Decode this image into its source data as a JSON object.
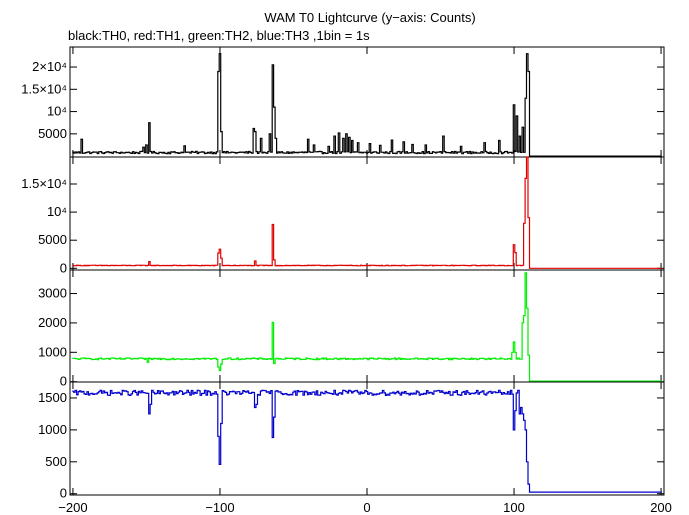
{
  "chart_data": {
    "type": "line",
    "title": "WAM T0 Lightcurve (y−axis: Counts)",
    "subtitle": "black:TH0, red:TH1, green:TH2, blue:TH3 ,1bin = 1s",
    "xlim": [
      -202,
      202
    ],
    "x_ticks": [
      -200,
      -100,
      0,
      100,
      200
    ],
    "x_tick_labels": [
      "−200",
      "−100",
      "0",
      "100",
      "200"
    ],
    "grid": false,
    "panels": [
      {
        "name": "TH0",
        "color": "#000000",
        "ylim": [
          -200,
          24500
        ],
        "y_ticks": [
          5000,
          10000,
          15000,
          20000
        ],
        "y_tick_labels": [
          "5000",
          "10⁴",
          "1.5×10⁴",
          "2×10⁴"
        ],
        "baseline": 800,
        "noise": 250,
        "tail_level": 0,
        "features": [
          {
            "x": -194,
            "y": 3800,
            "w": 1
          },
          {
            "x": -150,
            "y": 2500,
            "w": 1
          },
          {
            "x": -152,
            "y": 2000,
            "w": 1
          },
          {
            "x": -148,
            "y": 7500,
            "w": 1
          },
          {
            "x": -124,
            "y": 2300,
            "w": 1
          },
          {
            "x": -101,
            "y": 19000,
            "w": 1
          },
          {
            "x": -100,
            "y": 23000,
            "w": 1
          },
          {
            "x": -99,
            "y": 5500,
            "w": 1
          },
          {
            "x": -77,
            "y": 6200,
            "w": 1
          },
          {
            "x": -76,
            "y": 5500,
            "w": 1
          },
          {
            "x": -72,
            "y": 4000,
            "w": 1
          },
          {
            "x": -66,
            "y": 5000,
            "w": 1
          },
          {
            "x": -64,
            "y": 20500,
            "w": 1
          },
          {
            "x": -63,
            "y": 11000,
            "w": 1
          },
          {
            "x": -62,
            "y": 4000,
            "w": 1
          },
          {
            "x": -40,
            "y": 3800,
            "w": 1
          },
          {
            "x": -36,
            "y": 2500,
            "w": 1
          },
          {
            "x": -26,
            "y": 2200,
            "w": 1
          },
          {
            "x": -22,
            "y": 4500,
            "w": 1
          },
          {
            "x": -19,
            "y": 5200,
            "w": 1
          },
          {
            "x": -16,
            "y": 4000,
            "w": 1
          },
          {
            "x": -14,
            "y": 5000,
            "w": 1
          },
          {
            "x": -12,
            "y": 4200,
            "w": 1
          },
          {
            "x": -10,
            "y": 3500,
            "w": 1
          },
          {
            "x": -6,
            "y": 3000,
            "w": 1
          },
          {
            "x": 2,
            "y": 2800,
            "w": 1
          },
          {
            "x": 9,
            "y": 2400,
            "w": 1
          },
          {
            "x": 17,
            "y": 3600,
            "w": 1
          },
          {
            "x": 25,
            "y": 3200,
            "w": 1
          },
          {
            "x": 31,
            "y": 2600,
            "w": 1
          },
          {
            "x": 40,
            "y": 2500,
            "w": 1
          },
          {
            "x": 52,
            "y": 4500,
            "w": 1
          },
          {
            "x": 64,
            "y": 2200,
            "w": 1
          },
          {
            "x": 80,
            "y": 3000,
            "w": 1
          },
          {
            "x": 90,
            "y": 3500,
            "w": 1
          },
          {
            "x": 100,
            "y": 11500,
            "w": 1
          },
          {
            "x": 102,
            "y": 9000,
            "w": 1
          },
          {
            "x": 104,
            "y": 4500,
            "w": 1
          },
          {
            "x": 106,
            "y": 6500,
            "w": 1
          },
          {
            "x": 108,
            "y": 13000,
            "w": 1
          },
          {
            "x": 109,
            "y": 23000,
            "w": 1
          },
          {
            "x": 110,
            "y": 19000,
            "w": 1
          }
        ]
      },
      {
        "name": "TH1",
        "color": "#e00000",
        "ylim": [
          -300,
          19800
        ],
        "y_ticks": [
          0,
          5000,
          10000,
          15000
        ],
        "y_tick_labels": [
          "0",
          "5000",
          "10⁴",
          "1.5×10⁴"
        ],
        "baseline": 500,
        "noise": 60,
        "tail_level": 0,
        "features": [
          {
            "x": -101,
            "y": 2700,
            "w": 1
          },
          {
            "x": -100,
            "y": 3400,
            "w": 1
          },
          {
            "x": -99,
            "y": 1800,
            "w": 1
          },
          {
            "x": -76,
            "y": 1300,
            "w": 1
          },
          {
            "x": -64,
            "y": 7800,
            "w": 1
          },
          {
            "x": -63,
            "y": 1500,
            "w": 1
          },
          {
            "x": -148,
            "y": 1200,
            "w": 1
          },
          {
            "x": 100,
            "y": 4200,
            "w": 1
          },
          {
            "x": 101,
            "y": 2800,
            "w": 1
          },
          {
            "x": 107,
            "y": 8000,
            "w": 1
          },
          {
            "x": 108,
            "y": 16000,
            "w": 1
          },
          {
            "x": 109,
            "y": 20000,
            "w": 1
          },
          {
            "x": 110,
            "y": 9000,
            "w": 1
          }
        ]
      },
      {
        "name": "TH2",
        "color": "#00ee00",
        "ylim": [
          -10,
          3800
        ],
        "y_ticks": [
          0,
          1000,
          2000,
          3000
        ],
        "y_tick_labels": [
          "0",
          "1000",
          "2000",
          "3000"
        ],
        "baseline": 780,
        "noise": 28,
        "tail_level": 20,
        "features": [
          {
            "x": -149,
            "y": 660,
            "w": 1
          },
          {
            "x": -101,
            "y": 500,
            "w": 1
          },
          {
            "x": -100,
            "y": 380,
            "w": 1
          },
          {
            "x": -99,
            "y": 600,
            "w": 1
          },
          {
            "x": -64,
            "y": 2020,
            "w": 1
          },
          {
            "x": -63,
            "y": 620,
            "w": 1
          },
          {
            "x": 99,
            "y": 1000,
            "w": 1
          },
          {
            "x": 100,
            "y": 1350,
            "w": 1
          },
          {
            "x": 101,
            "y": 1000,
            "w": 1
          },
          {
            "x": 106,
            "y": 2000,
            "w": 1
          },
          {
            "x": 107,
            "y": 2250,
            "w": 1
          },
          {
            "x": 108,
            "y": 3700,
            "w": 1
          },
          {
            "x": 109,
            "y": 2500,
            "w": 1
          },
          {
            "x": 110,
            "y": 900,
            "w": 1
          }
        ]
      },
      {
        "name": "TH3",
        "color": "#0000cc",
        "ylim": [
          -20,
          1750
        ],
        "y_ticks": [
          0,
          500,
          1000,
          1500
        ],
        "y_tick_labels": [
          "0",
          "500",
          "1000",
          "1500"
        ],
        "baseline": 1580,
        "noise": 40,
        "tail_level": 25,
        "features": [
          {
            "x": -148,
            "y": 1250,
            "w": 1
          },
          {
            "x": -147,
            "y": 1400,
            "w": 1
          },
          {
            "x": -101,
            "y": 900,
            "w": 1
          },
          {
            "x": -100,
            "y": 460,
            "w": 1
          },
          {
            "x": -99,
            "y": 1100,
            "w": 1
          },
          {
            "x": -76,
            "y": 1350,
            "w": 1
          },
          {
            "x": -75,
            "y": 1400,
            "w": 1
          },
          {
            "x": -64,
            "y": 880,
            "w": 1
          },
          {
            "x": -63,
            "y": 1200,
            "w": 1
          },
          {
            "x": 100,
            "y": 1000,
            "w": 1
          },
          {
            "x": 101,
            "y": 1300,
            "w": 1
          },
          {
            "x": 104,
            "y": 1250,
            "w": 1
          },
          {
            "x": 105,
            "y": 1350,
            "w": 1
          },
          {
            "x": 106,
            "y": 1250,
            "w": 1
          },
          {
            "x": 107,
            "y": 1150,
            "w": 1
          },
          {
            "x": 108,
            "y": 1000,
            "w": 1
          },
          {
            "x": 109,
            "y": 500,
            "w": 1
          },
          {
            "x": 110,
            "y": 150,
            "w": 1
          }
        ]
      }
    ]
  }
}
